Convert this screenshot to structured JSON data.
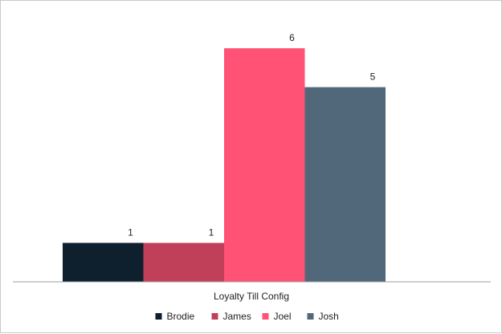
{
  "chart_data": {
    "type": "bar",
    "categories": [
      "Loyalty Till Config"
    ],
    "series": [
      {
        "name": "Brodie",
        "values": [
          1
        ],
        "color": "#0e1f2e"
      },
      {
        "name": "James",
        "values": [
          1
        ],
        "color": "#c0405a"
      },
      {
        "name": "Joel",
        "values": [
          6
        ],
        "color": "#ff5274"
      },
      {
        "name": "Josh",
        "values": [
          5
        ],
        "color": "#51687b"
      }
    ],
    "ylim": [
      0,
      6.6
    ],
    "grid": false,
    "legend": "bottom",
    "data_labels": true
  }
}
